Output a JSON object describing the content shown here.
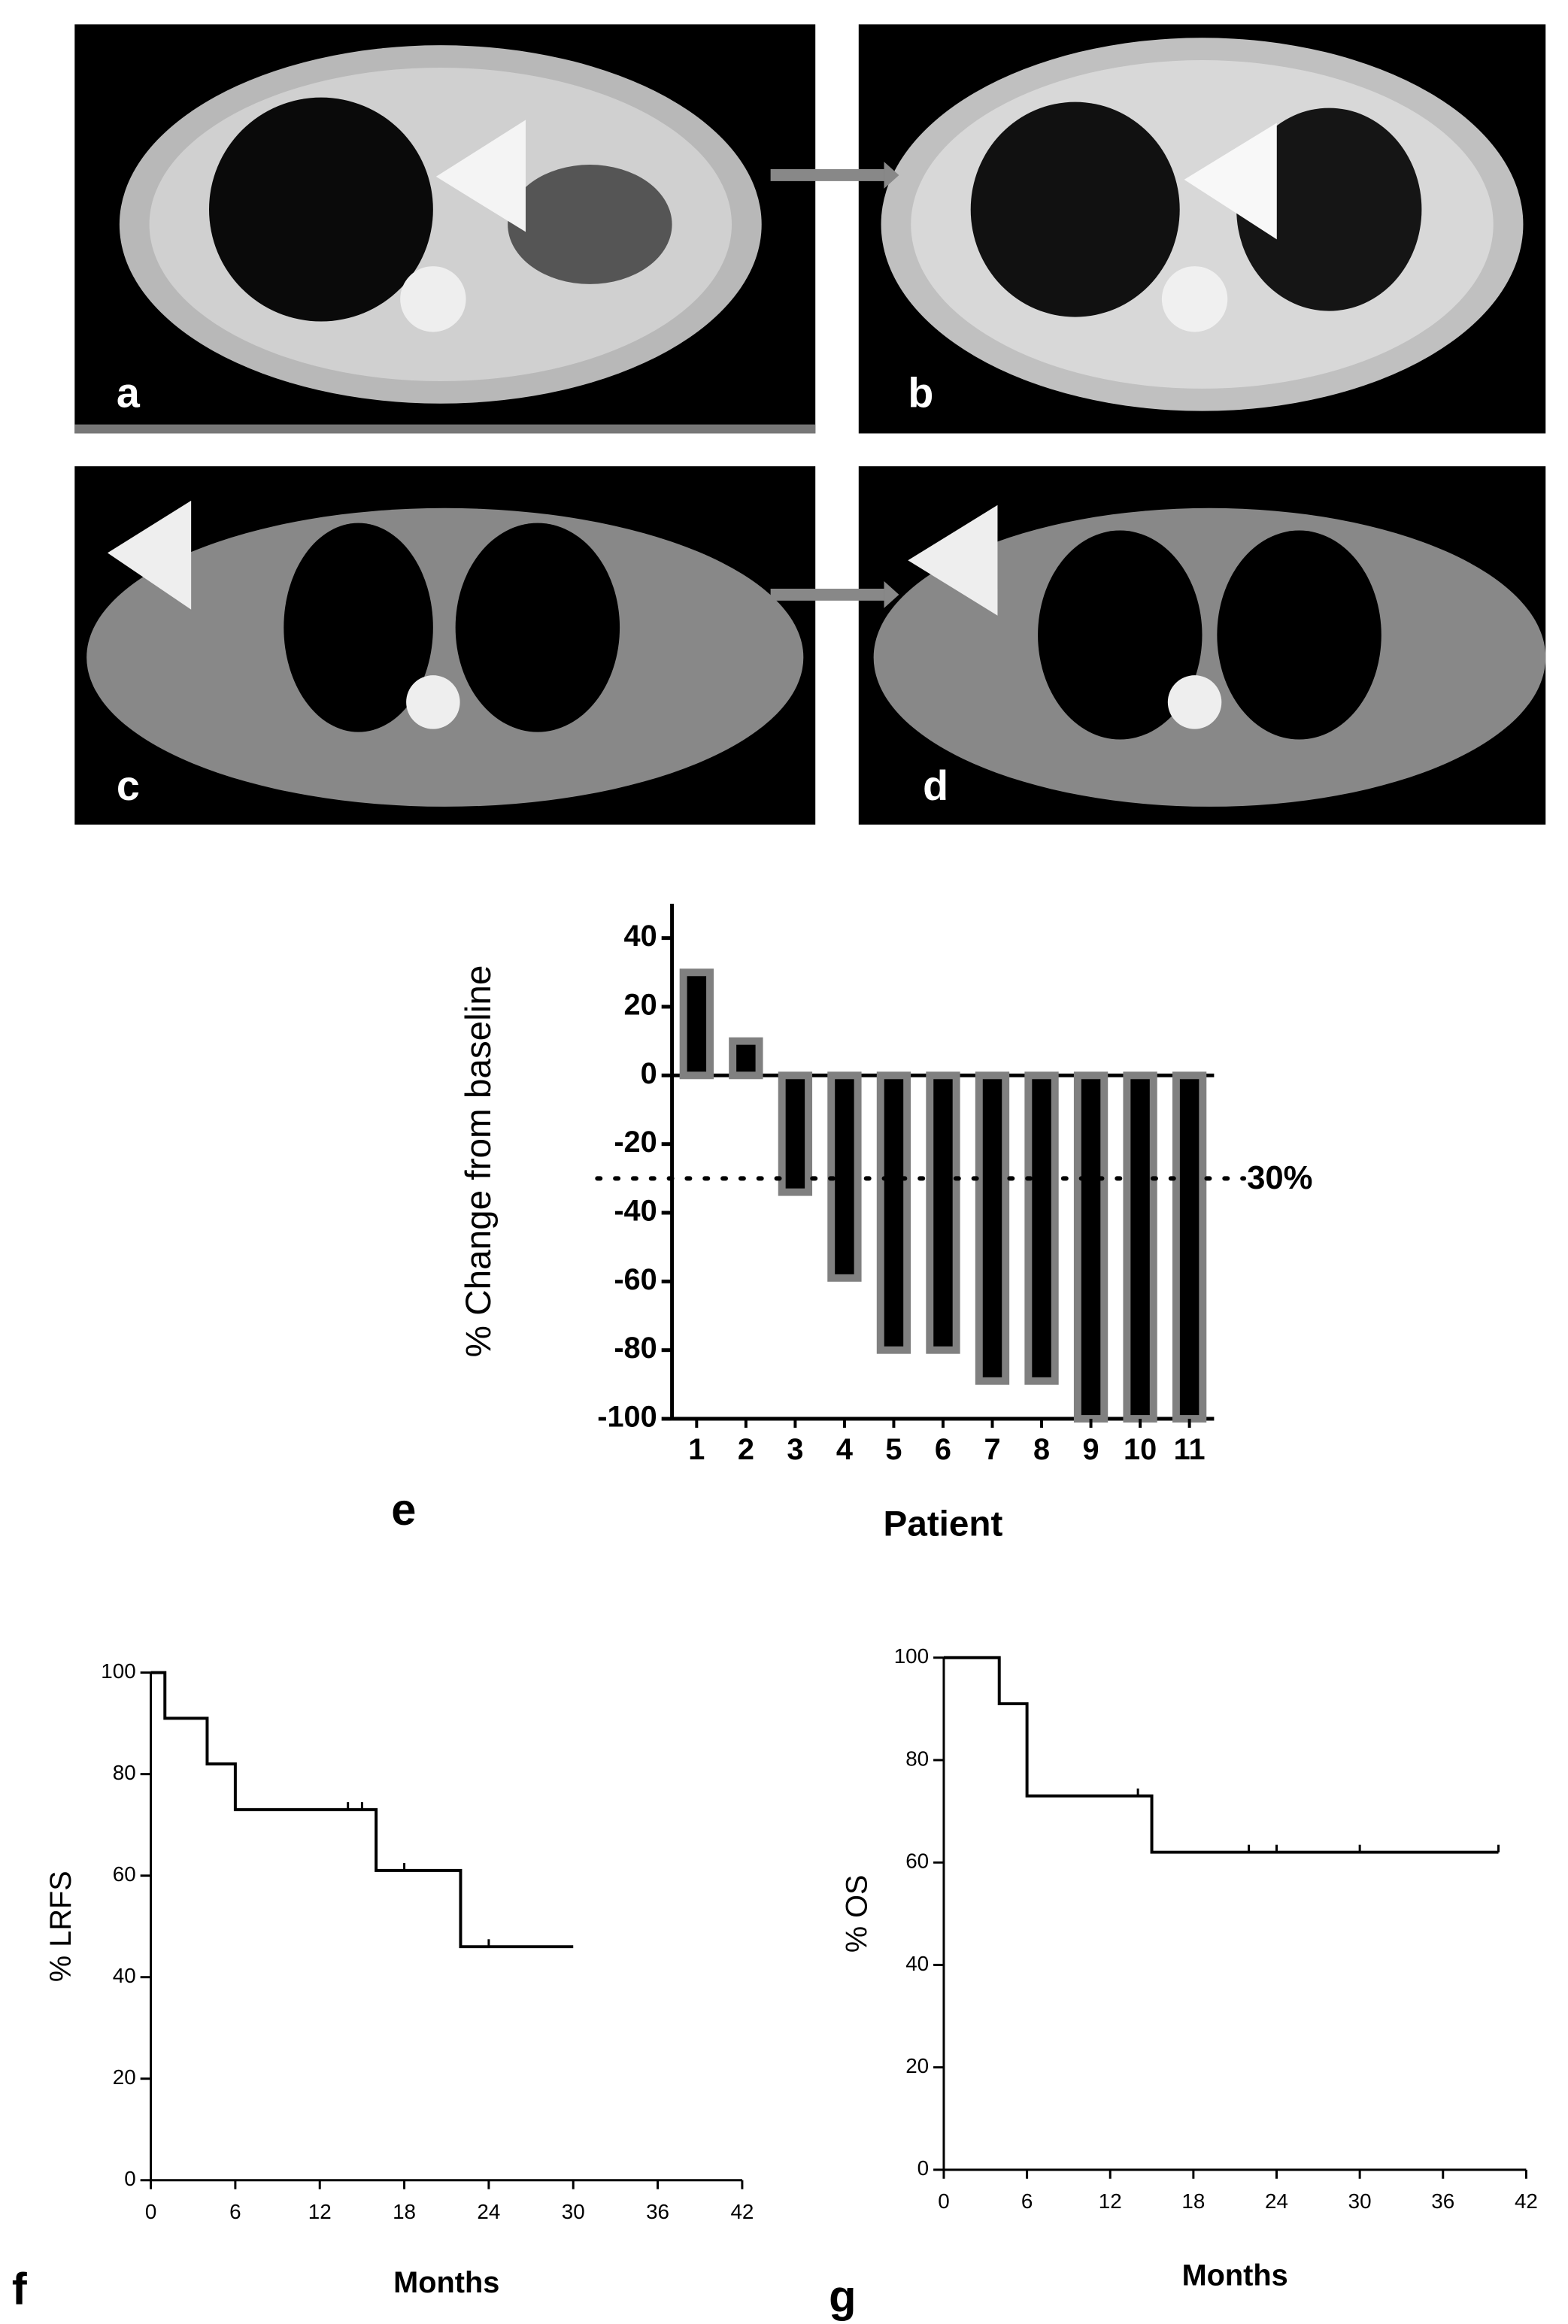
{
  "panel_labels": [
    "a",
    "b",
    "c",
    "d",
    "e",
    "f",
    "g"
  ],
  "chart_data": [
    {
      "type": "bar",
      "ylabel": "% Change from baseline",
      "xlabel": "Patient",
      "categories": [
        "1",
        "2",
        "3",
        "4",
        "5",
        "6",
        "7",
        "8",
        "9",
        "10",
        "11"
      ],
      "values": [
        30,
        10,
        -34,
        -59,
        -80,
        -80,
        -89,
        -89,
        -100,
        -100,
        -100
      ],
      "color": "#000000",
      "edge_color": "#808080",
      "ylim": [
        -100,
        50
      ],
      "yticks": [
        -100,
        -80,
        -60,
        -40,
        -20,
        0,
        20,
        40
      ],
      "threshold": -30,
      "threshold_label": "30%"
    },
    {
      "type": "step",
      "ylabel": "% LRFS",
      "xlabel": "Months",
      "color": "#000000",
      "x": [
        0,
        1,
        1,
        4,
        4,
        6,
        6,
        16,
        16,
        22,
        22,
        30
      ],
      "values": [
        100,
        100,
        91,
        91,
        82,
        82,
        73,
        73,
        61,
        61,
        46,
        46
      ],
      "censored": {
        "x": [
          14,
          15,
          18,
          24
        ],
        "values": [
          73,
          73,
          61,
          46
        ]
      },
      "xlim": [
        0,
        42
      ],
      "xticks": [
        0,
        6,
        12,
        18,
        24,
        30,
        36,
        42
      ],
      "ylim": [
        0,
        100
      ],
      "yticks": [
        0,
        20,
        40,
        60,
        80,
        100
      ]
    },
    {
      "type": "step",
      "ylabel": "% OS",
      "xlabel": "Months",
      "color": "#000000",
      "x": [
        0,
        4,
        4,
        6,
        6,
        15,
        15,
        40
      ],
      "values": [
        100,
        100,
        91,
        91,
        73,
        73,
        62,
        62
      ],
      "censored": {
        "x": [
          14,
          22,
          24,
          30,
          40
        ],
        "values": [
          73,
          62,
          62,
          62,
          62
        ]
      },
      "xlim": [
        0,
        42
      ],
      "xticks": [
        0,
        6,
        12,
        18,
        24,
        30,
        36,
        42
      ],
      "ylim": [
        0,
        100
      ],
      "yticks": [
        0,
        20,
        40,
        60,
        80,
        100
      ]
    }
  ]
}
